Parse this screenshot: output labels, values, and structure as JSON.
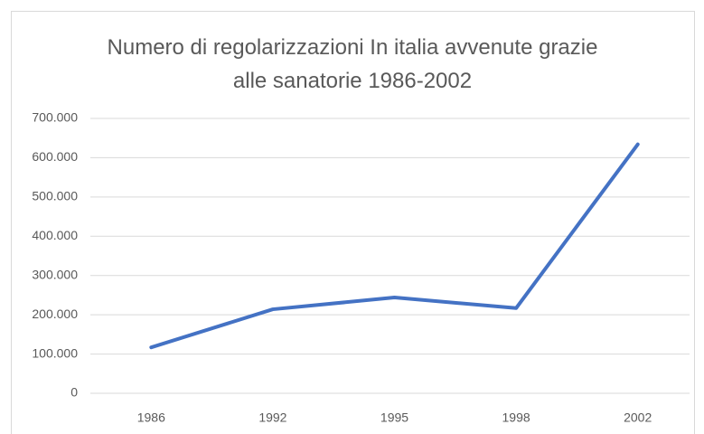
{
  "chart_data": {
    "type": "line",
    "title": "Numero di regolarizzazioni In italia avvenute grazie alle sanatorie 1986-2002",
    "categories": [
      "1986",
      "1992",
      "1995",
      "1998",
      "2002"
    ],
    "series": [
      {
        "color": "#4472c4",
        "values": [
          117000,
          214000,
          244000,
          217000,
          634000
        ]
      }
    ],
    "ylim": [
      0,
      700000
    ],
    "yticks": [
      0,
      {
        "value": 100000,
        "label": "100.000"
      },
      {
        "value": 200000,
        "label": "200.000"
      },
      {
        "value": 300000,
        "label": "300.000"
      },
      {
        "value": 400000,
        "label": "400.000"
      },
      {
        "value": 500000,
        "label": "500.000"
      },
      {
        "value": 600000,
        "label": "600.000"
      },
      {
        "value": 700000,
        "label": "700.000"
      }
    ],
    "grid": true
  }
}
